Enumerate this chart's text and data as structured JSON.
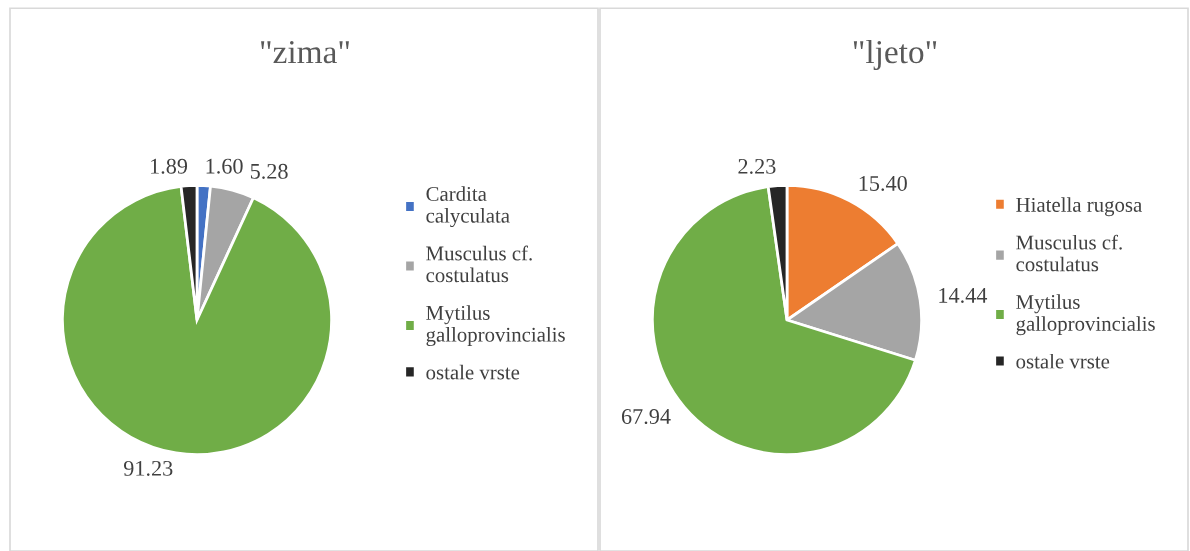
{
  "chart_data": [
    {
      "type": "pie",
      "title": "\"zima\"",
      "categories": [
        "Cardita calyculata",
        "Musculus cf. costulatus",
        "Mytilus galloprovincialis",
        "ostale vrste"
      ],
      "values": [
        1.6,
        5.28,
        91.23,
        1.89
      ],
      "value_labels": [
        "1.60",
        "5.28",
        "91.23",
        "1.89"
      ],
      "colors": [
        "#4472c4",
        "#a5a5a5",
        "#70ad47",
        "#262626"
      ],
      "legend": "right"
    },
    {
      "type": "pie",
      "title": "\"ljeto\"",
      "categories": [
        "Hiatella rugosa",
        "Musculus cf. costulatus",
        "Mytilus galloprovincialis",
        "ostale vrste"
      ],
      "values": [
        15.4,
        14.44,
        67.94,
        2.23
      ],
      "value_labels": [
        "15.40",
        "14.44",
        "67.94",
        "2.23"
      ],
      "colors": [
        "#ed7d31",
        "#a5a5a5",
        "#70ad47",
        "#262626"
      ],
      "legend": "right"
    }
  ]
}
